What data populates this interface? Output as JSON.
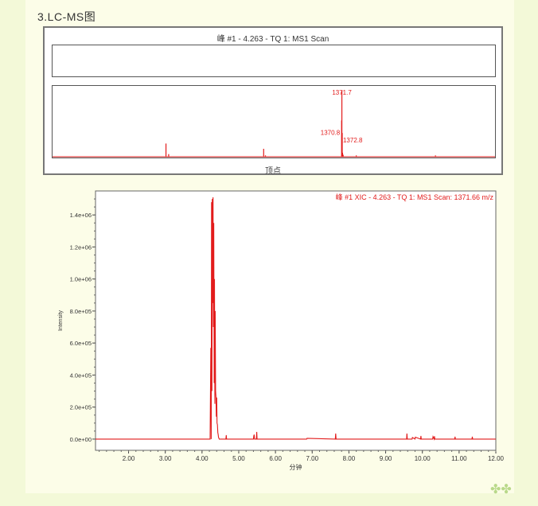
{
  "heading": "3.LC-MS图",
  "colors": {
    "trace": "#e21b1b",
    "background": "#f3f9d8",
    "frame": "#777777"
  },
  "decoration": "clover-icon",
  "chart_data": [
    {
      "type": "bar",
      "title": "峰 #1 - 4.263 - TQ 1: MS1 Scan",
      "xlabel": "顶点",
      "ylabel": "",
      "grid": false,
      "xlim_mz_estimate": [
        400,
        1886
      ],
      "peaks": [
        {
          "mz": 781,
          "rel": 0.2
        },
        {
          "mz": 790,
          "rel": 0.04
        },
        {
          "mz": 1109,
          "rel": 0.12
        },
        {
          "mz": 1115,
          "rel": 0.02
        },
        {
          "mz": 1370.8,
          "rel": 0.55,
          "label": "1370.8"
        },
        {
          "mz": 1371.7,
          "rel": 1.0,
          "label": "1371.7"
        },
        {
          "mz": 1372.8,
          "rel": 0.36,
          "label": "1372.8"
        },
        {
          "mz": 1374,
          "rel": 0.06
        },
        {
          "mz": 1376,
          "rel": 0.03
        },
        {
          "mz": 1420,
          "rel": 0.02
        },
        {
          "mz": 1686,
          "rel": 0.02
        }
      ]
    },
    {
      "type": "line",
      "title": "峰 #1 XIC - 4.263 - TQ 1: MS1 Scan: 1371.66 m/z",
      "xlabel": "分钟",
      "ylabel": "Intensity",
      "xlim": [
        1.1,
        12.0
      ],
      "ylim": [
        -70000,
        1550000
      ],
      "grid": false,
      "xticks": [
        "2.00",
        "3.00",
        "4.00",
        "5.00",
        "6.00",
        "7.00",
        "8.00",
        "9.00",
        "10.00",
        "11.00",
        "12.00"
      ],
      "yticks": [
        "0.0e+00",
        "2.0e+05",
        "4.0e+05",
        "6.0e+05",
        "8.0e+05",
        "1.0e+06",
        "1.2e+06",
        "1.4e+06"
      ],
      "x": [
        1.1,
        4.2,
        4.22,
        4.24,
        4.25,
        4.26,
        4.27,
        4.28,
        4.29,
        4.3,
        4.31,
        4.32,
        4.33,
        4.34,
        4.35,
        4.36,
        4.37,
        4.38,
        4.39,
        4.4,
        4.41,
        4.42,
        4.43,
        4.44,
        4.45,
        4.46,
        4.47,
        4.48,
        4.5,
        4.52,
        4.55,
        4.65,
        4.66,
        4.67,
        5.4,
        5.41,
        5.42,
        5.43,
        5.48,
        5.49,
        5.5,
        6.85,
        6.86,
        7.63,
        7.64,
        7.65,
        9.57,
        9.58,
        9.59,
        9.72,
        9.73,
        9.8,
        9.81,
        9.95,
        9.96,
        9.97,
        10.28,
        10.29,
        10.32,
        10.33,
        10.34,
        10.88,
        10.89,
        10.9,
        11.35,
        11.36,
        11.37,
        12.0
      ],
      "y": [
        0,
        0,
        0,
        570000,
        0,
        1480000,
        300000,
        1500000,
        850000,
        1510000,
        700000,
        1350000,
        350000,
        1000000,
        220000,
        800000,
        300000,
        260000,
        140000,
        260000,
        100000,
        90000,
        40000,
        30000,
        10000,
        5000,
        0,
        0,
        0,
        0,
        0,
        0,
        25000,
        0,
        0,
        20000,
        28000,
        0,
        0,
        45000,
        0,
        0,
        5000,
        0,
        35000,
        0,
        0,
        35000,
        0,
        0,
        10000,
        0,
        12000,
        0,
        20000,
        0,
        0,
        15000,
        0,
        18000,
        0,
        0,
        15000,
        0,
        0,
        15000,
        0,
        0
      ]
    }
  ]
}
